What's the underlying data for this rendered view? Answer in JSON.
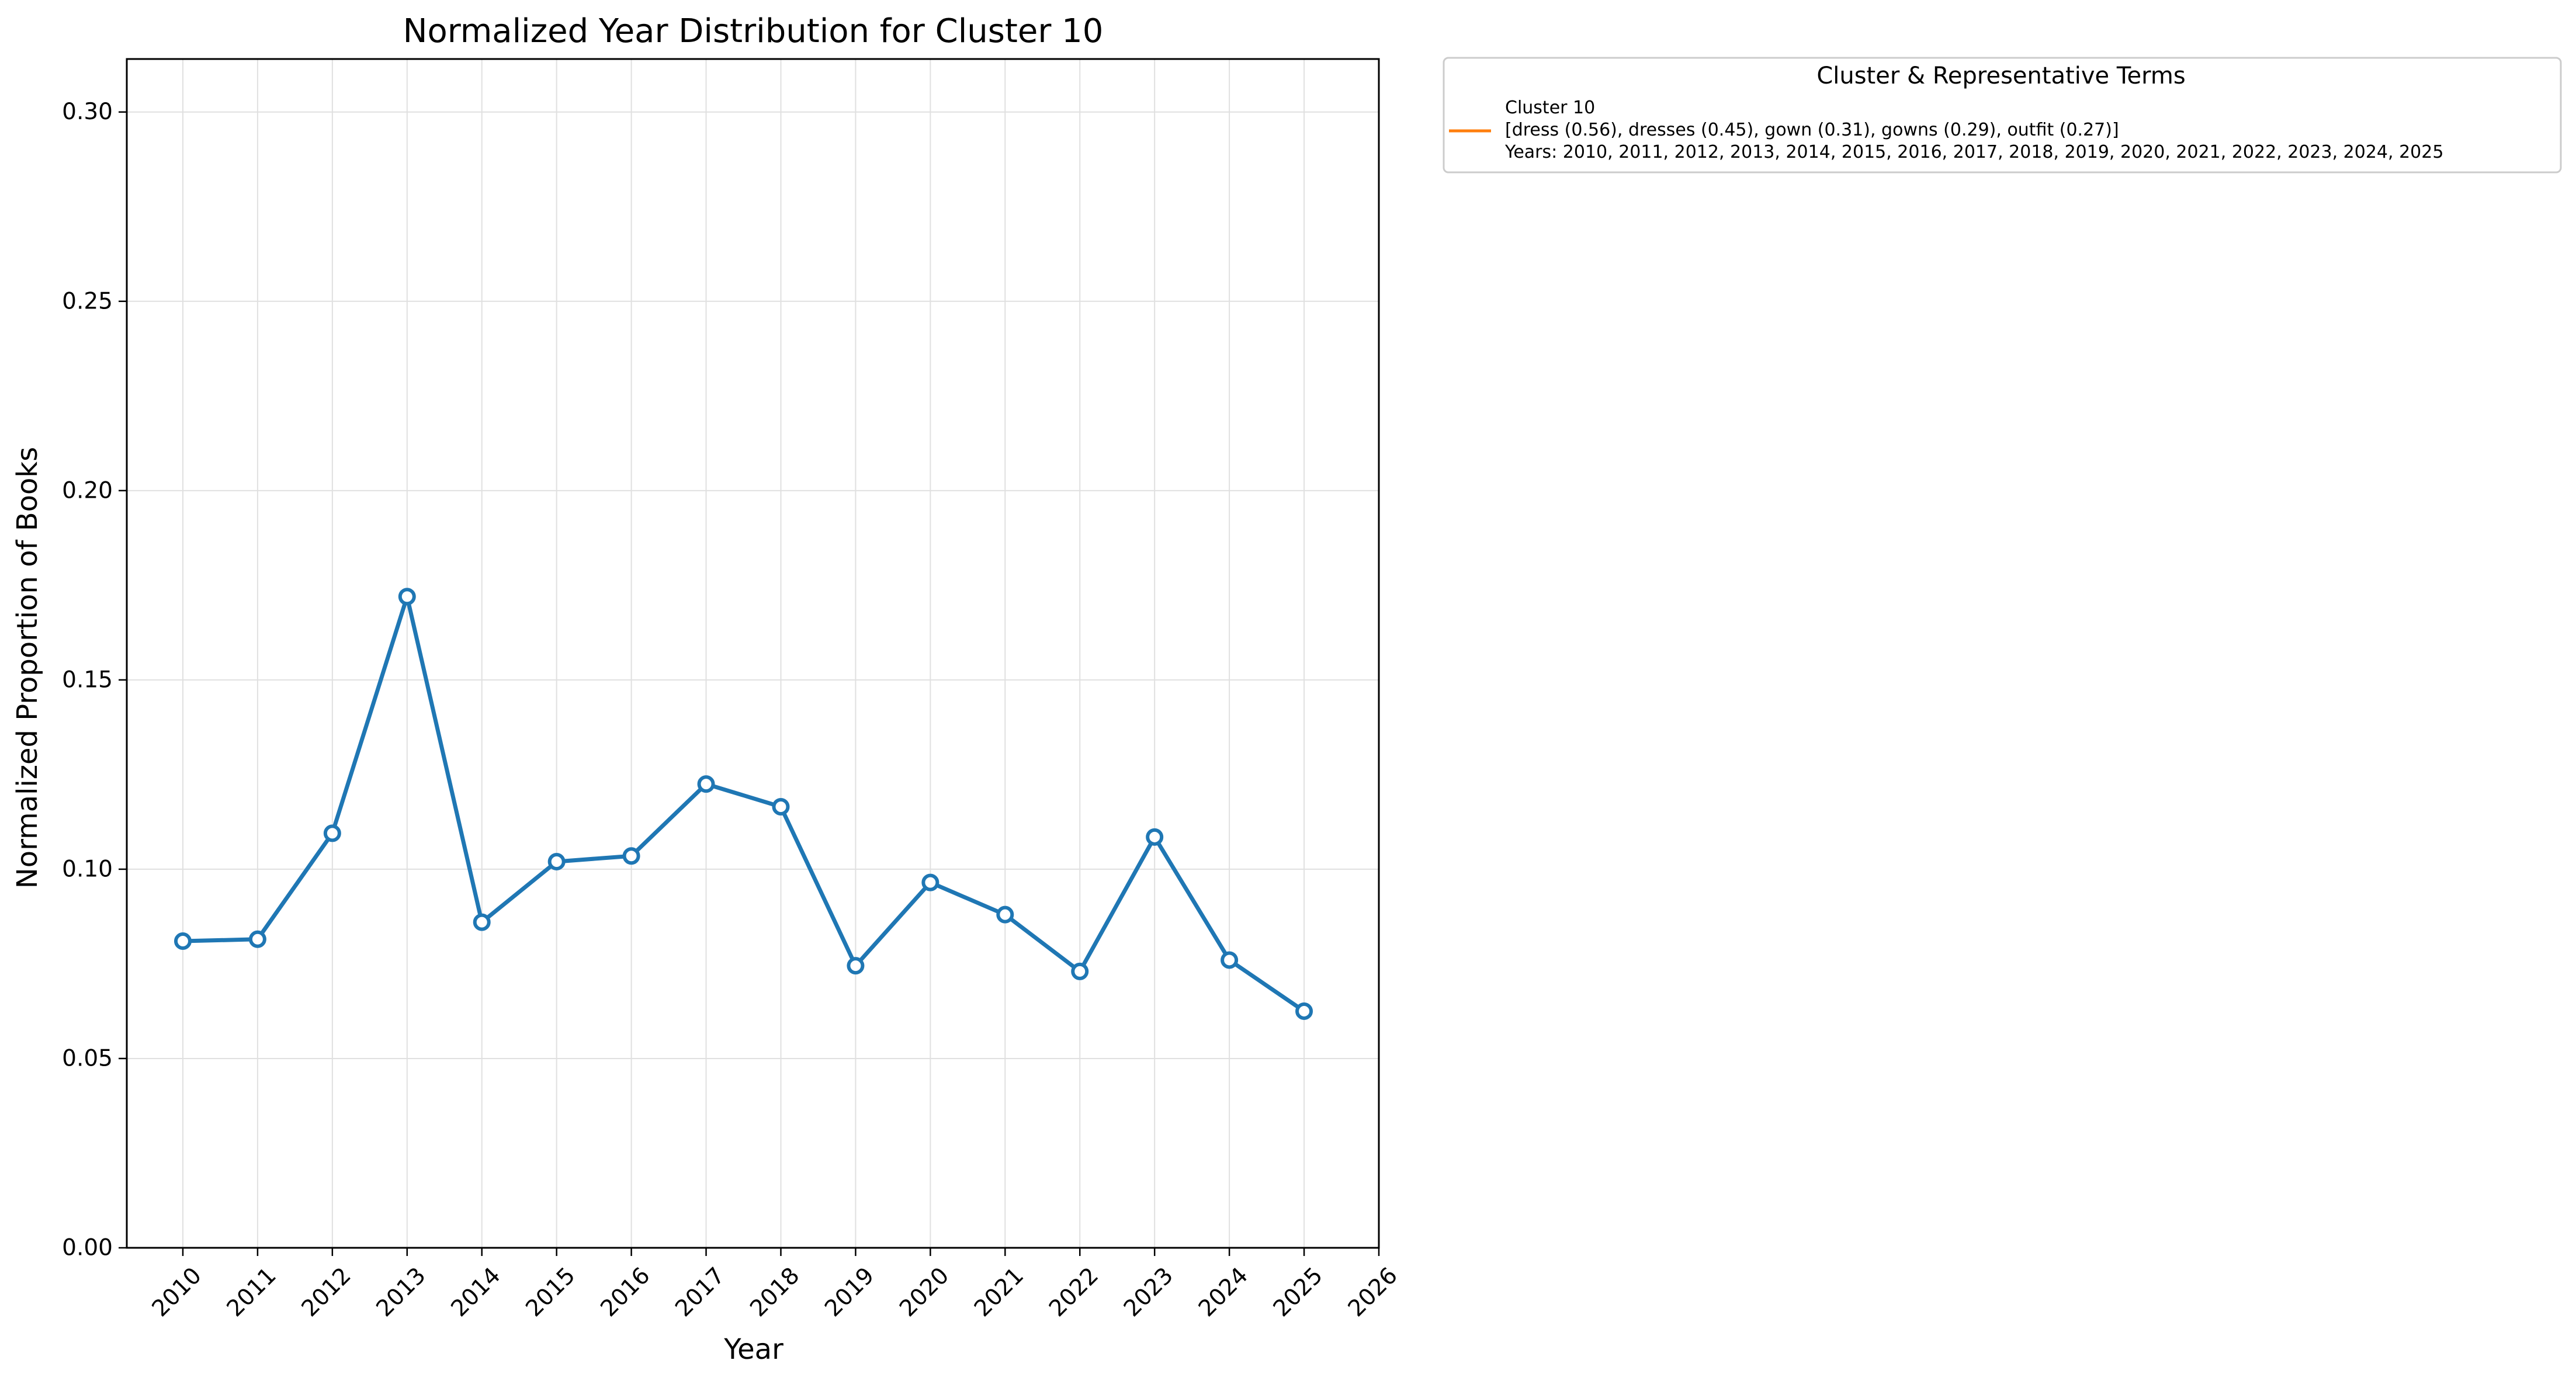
{
  "chart_data": {
    "type": "line",
    "title": "Normalized Year Distribution for Cluster 10",
    "xlabel": "Year",
    "ylabel": "Normalized Proportion of Books",
    "x_ticks": [
      "2010",
      "2011",
      "2012",
      "2013",
      "2014",
      "2015",
      "2016",
      "2017",
      "2018",
      "2019",
      "2020",
      "2021",
      "2022",
      "2023",
      "2024",
      "2025",
      "2026"
    ],
    "y_ticks": [
      "0.00",
      "0.05",
      "0.10",
      "0.15",
      "0.20",
      "0.25",
      "0.30"
    ],
    "xlim": [
      2009.25,
      2026
    ],
    "ylim": [
      0,
      0.314
    ],
    "grid": true,
    "series": [
      {
        "name": "Cluster 10",
        "color": "#1f77b4",
        "x": [
          2010,
          2011,
          2012,
          2013,
          2014,
          2015,
          2016,
          2017,
          2018,
          2019,
          2020,
          2021,
          2022,
          2023,
          2024,
          2025
        ],
        "values": [
          0.081,
          0.0815,
          0.1095,
          0.172,
          0.086,
          0.102,
          0.1035,
          0.1225,
          0.1165,
          0.0745,
          0.0965,
          0.088,
          0.073,
          0.1085,
          0.076,
          0.0625
        ]
      }
    ],
    "legend": {
      "position": "outside-upper-right",
      "title": "Cluster & Representative Terms",
      "color": "#ff7f0e",
      "lines": [
        "Cluster 10",
        "[dress (0.56), dresses (0.45), gown (0.31), gowns (0.29), outfit (0.27)]",
        "Years: 2010, 2011, 2012, 2013, 2014, 2015, 2016, 2017, 2018, 2019, 2020, 2021, 2022, 2023, 2024, 2025"
      ]
    }
  }
}
